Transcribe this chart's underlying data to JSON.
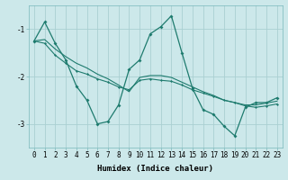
{
  "xlabel": "Humidex (Indice chaleur)",
  "bg_color": "#cce8ea",
  "grid_color": "#aacfd2",
  "line_color": "#1e7b6e",
  "x": [
    0,
    1,
    2,
    3,
    4,
    5,
    6,
    7,
    8,
    9,
    10,
    11,
    12,
    13,
    14,
    15,
    16,
    17,
    18,
    19,
    20,
    21,
    22,
    23
  ],
  "y_main": [
    -1.25,
    -0.85,
    -1.3,
    -1.65,
    -2.2,
    -2.5,
    -3.0,
    -2.95,
    -2.6,
    -1.85,
    -1.65,
    -1.1,
    -0.95,
    -0.72,
    -1.5,
    -2.25,
    -2.7,
    -2.8,
    -3.05,
    -3.25,
    -2.65,
    -2.55,
    -2.55,
    -2.45
  ],
  "y_trend1": [
    -1.25,
    -1.3,
    -1.55,
    -1.72,
    -1.88,
    -1.95,
    -2.05,
    -2.12,
    -2.22,
    -2.28,
    -2.08,
    -2.05,
    -2.08,
    -2.1,
    -2.18,
    -2.28,
    -2.35,
    -2.42,
    -2.5,
    -2.55,
    -2.62,
    -2.65,
    -2.62,
    -2.58
  ],
  "y_trend2": [
    -1.25,
    -1.22,
    -1.42,
    -1.58,
    -1.72,
    -1.82,
    -1.95,
    -2.05,
    -2.18,
    -2.32,
    -2.02,
    -1.98,
    -1.98,
    -2.02,
    -2.12,
    -2.22,
    -2.32,
    -2.4,
    -2.5,
    -2.55,
    -2.6,
    -2.6,
    -2.56,
    -2.52
  ],
  "ylim": [
    -3.5,
    -0.5
  ],
  "yticks": [
    -3,
    -2,
    -1
  ],
  "xlim": [
    -0.5,
    23.5
  ],
  "xticks": [
    0,
    1,
    2,
    3,
    4,
    5,
    6,
    7,
    8,
    9,
    10,
    11,
    12,
    13,
    14,
    15,
    16,
    17,
    18,
    19,
    20,
    21,
    22,
    23
  ],
  "tick_fontsize": 5.5,
  "label_fontsize": 6.5
}
